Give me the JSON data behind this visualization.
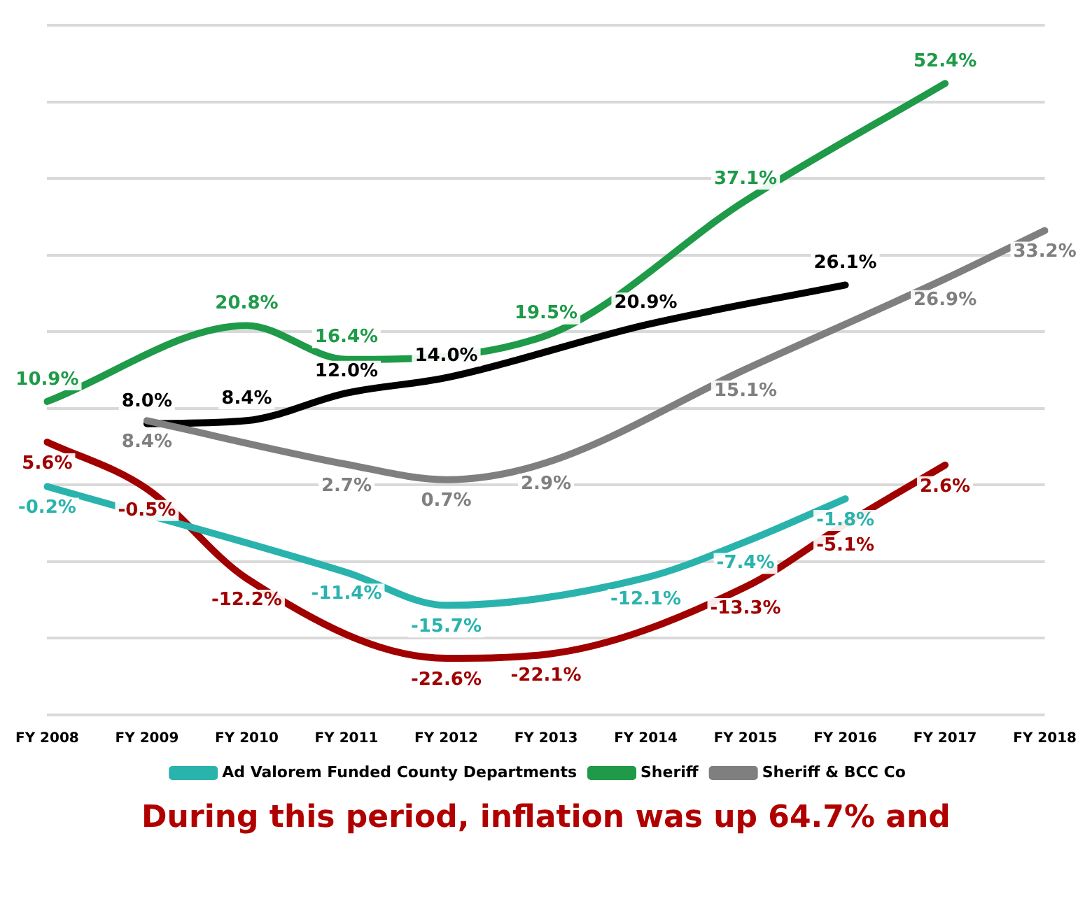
{
  "chart_data": {
    "type": "line",
    "categories": [
      "FY 2008",
      "FY 2009",
      "FY 2010",
      "FY 2011",
      "FY 2012",
      "FY 2013",
      "FY 2014",
      "FY 2015",
      "FY 2016",
      "FY 2017",
      "FY 2018"
    ],
    "series": [
      {
        "name": "Ad Valorem Funded County Departments",
        "color": "#2ab3ad",
        "values": [
          -0.2,
          null,
          null,
          -11.4,
          -15.7,
          null,
          -12.1,
          -7.4,
          -1.8,
          null,
          null
        ],
        "value_labels": [
          "-0.2%",
          null,
          null,
          "-11.4%",
          "-15.7%",
          null,
          "-12.1%",
          "-7.4%",
          "-1.8%",
          null,
          null
        ]
      },
      {
        "name": "Sheriff",
        "color": "#1e9a48",
        "values": [
          10.9,
          null,
          20.8,
          16.4,
          null,
          19.5,
          null,
          37.1,
          null,
          52.4,
          null
        ],
        "value_labels": [
          "10.9%",
          null,
          "20.8%",
          "16.4%",
          null,
          "19.5%",
          null,
          "37.1%",
          null,
          "52.4%",
          null
        ]
      },
      {
        "name": "Sheriff & BCC Co",
        "color": "#7f7f7f",
        "values": [
          null,
          8.4,
          null,
          2.7,
          0.7,
          2.9,
          null,
          15.1,
          null,
          26.9,
          33.2
        ],
        "value_labels": [
          null,
          "8.4%",
          null,
          "2.7%",
          "0.7%",
          "2.9%",
          null,
          "15.1%",
          null,
          "26.9%",
          "33.2%"
        ]
      },
      {
        "color": "#000000",
        "values": [
          null,
          8.0,
          8.4,
          12.0,
          14.0,
          null,
          20.9,
          null,
          26.1,
          null,
          null
        ],
        "value_labels": [
          null,
          "8.0%",
          "8.4%",
          "12.0%",
          "14.0%",
          null,
          "20.9%",
          null,
          "26.1%",
          null,
          null
        ]
      },
      {
        "color": "#a00000",
        "values": [
          5.6,
          -0.5,
          -12.2,
          null,
          -22.6,
          -22.1,
          null,
          -13.3,
          -5.1,
          2.6,
          null
        ],
        "value_labels": [
          "5.6%",
          "-0.5%",
          "-12.2%",
          null,
          "-22.6%",
          "-22.1%",
          null,
          "-13.3%",
          "-5.1%",
          "2.6%",
          null
        ]
      }
    ],
    "grid": "y",
    "legend": "bottom",
    "marker": "none",
    "line_style": "solid",
    "tick_labels": "x",
    "annotations": [
      "During this period, inflation was up 64.7% and"
    ]
  }
}
